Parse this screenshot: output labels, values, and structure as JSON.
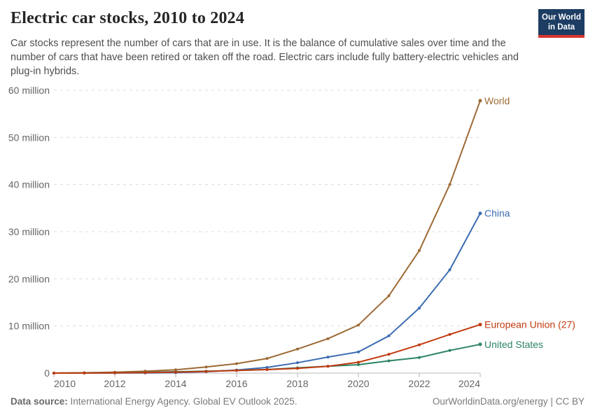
{
  "header": {
    "title": "Electric car stocks, 2010 to 2024",
    "subtitle": "Car stocks represent the number of cars that are in use. It is the balance of cumulative sales over time and the number of cars that have been retired or taken off the road. Electric cars include fully battery-electric vehicles and plug-in hybrids.",
    "logo": {
      "line1": "Our World",
      "line2": "in Data",
      "bg_color": "#1d3d63",
      "bar_color": "#d8352f"
    }
  },
  "chart_data": {
    "type": "line",
    "title": "Electric car stocks, 2010 to 2024",
    "xlabel": "",
    "ylabel": "",
    "unit": "million cars",
    "x": [
      2010,
      2011,
      2012,
      2013,
      2014,
      2015,
      2016,
      2017,
      2018,
      2019,
      2020,
      2021,
      2022,
      2023,
      2024
    ],
    "x_ticks": [
      2010,
      2012,
      2014,
      2016,
      2018,
      2020,
      2022,
      2024
    ],
    "y_ticks": [
      {
        "value": 0,
        "label": "0"
      },
      {
        "value": 10,
        "label": "10 million"
      },
      {
        "value": 20,
        "label": "20 million"
      },
      {
        "value": 30,
        "label": "30 million"
      },
      {
        "value": 40,
        "label": "40 million"
      },
      {
        "value": 50,
        "label": "50 million"
      },
      {
        "value": 60,
        "label": "60 million"
      }
    ],
    "ylim": [
      0,
      60
    ],
    "xlim": [
      2010,
      2024
    ],
    "grid": "horizontal-dashed",
    "legend_position": "right-end-labels",
    "series": [
      {
        "name": "World",
        "color": "#9d6a35",
        "values": [
          0.02,
          0.07,
          0.18,
          0.4,
          0.7,
          1.3,
          2.0,
          3.1,
          5.1,
          7.3,
          10.2,
          16.4,
          26.0,
          40.0,
          57.8
        ]
      },
      {
        "name": "China",
        "color": "#3d6cb2",
        "values": [
          0.005,
          0.01,
          0.02,
          0.04,
          0.1,
          0.3,
          0.65,
          1.2,
          2.2,
          3.4,
          4.5,
          7.9,
          13.8,
          21.9,
          33.9
        ]
      },
      {
        "name": "European Union (27)",
        "color": "#c13a0f",
        "values": [
          0.005,
          0.02,
          0.06,
          0.12,
          0.2,
          0.35,
          0.55,
          0.75,
          1.0,
          1.45,
          2.3,
          4.0,
          6.0,
          8.2,
          10.3
        ]
      },
      {
        "name": "United States",
        "color": "#2c8465",
        "values": [
          0.004,
          0.02,
          0.07,
          0.17,
          0.29,
          0.4,
          0.56,
          0.76,
          1.12,
          1.45,
          1.78,
          2.6,
          3.3,
          4.8,
          6.1
        ]
      }
    ]
  },
  "footer": {
    "source_label": "Data source:",
    "source_text": "International Energy Agency. Global EV Outlook 2025.",
    "url": "OurWorldinData.org/energy",
    "separator": "|",
    "license": "CC BY"
  }
}
